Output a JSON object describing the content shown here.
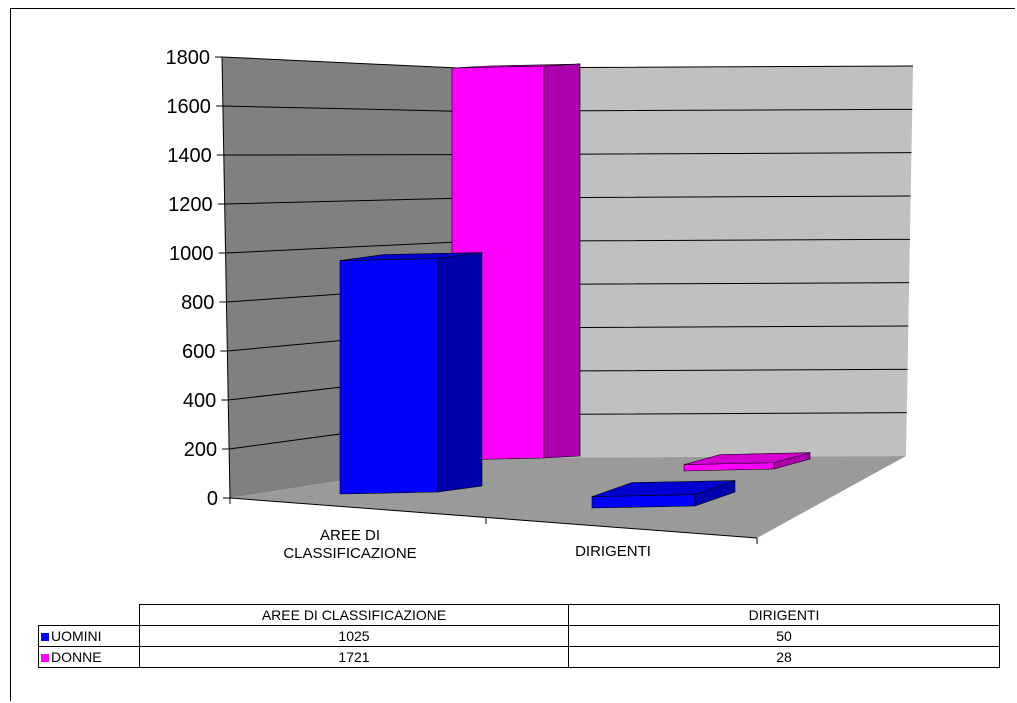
{
  "chart_data": {
    "type": "bar",
    "categories": [
      "AREE DI CLASSIFICAZIONE",
      "DIRIGENTI"
    ],
    "category_lines": [
      [
        "AREE DI",
        "CLASSIFICAZIONE"
      ],
      [
        "DIRIGENTI"
      ]
    ],
    "series": [
      {
        "name": "UOMINI",
        "values": [
          1025,
          50
        ],
        "color": "#0000ff"
      },
      {
        "name": "DONNE",
        "values": [
          1721,
          28
        ],
        "color": "#ff00ff"
      }
    ],
    "yticks": [
      "0",
      "200",
      "400",
      "600",
      "800",
      "1000",
      "1200",
      "1400",
      "1600",
      "1800"
    ],
    "ylim": [
      0,
      1800
    ],
    "grid": true,
    "legend": "data-table"
  },
  "table": {
    "headers": [
      "AREE DI CLASSIFICAZIONE",
      "DIRIGENTI"
    ],
    "rows": [
      {
        "label": "UOMINI",
        "values": [
          "1025",
          "50"
        ]
      },
      {
        "label": "DONNE",
        "values": [
          "1721",
          "28"
        ]
      }
    ]
  }
}
